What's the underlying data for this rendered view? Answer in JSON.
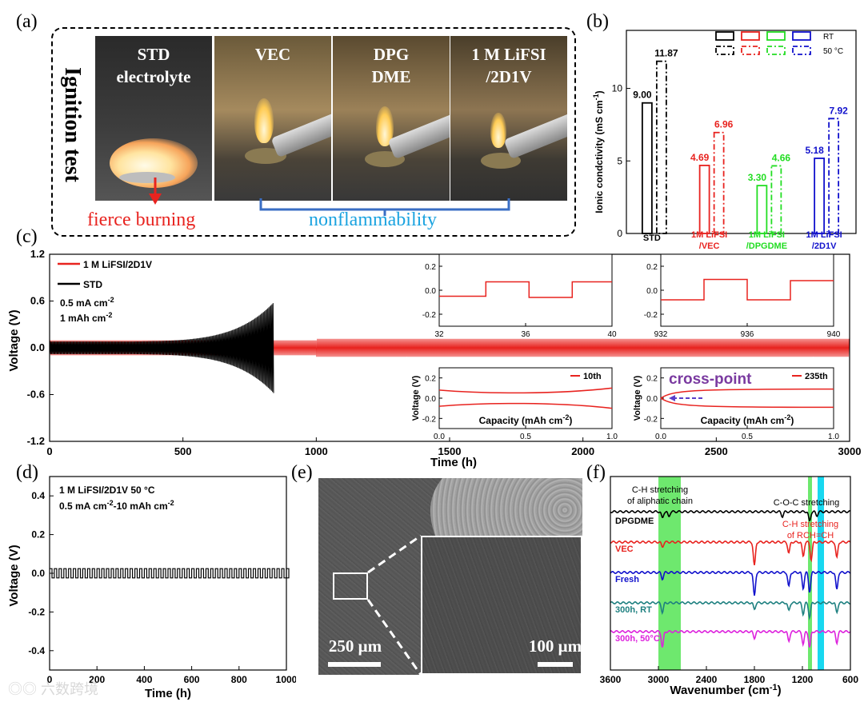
{
  "panel_labels": {
    "a": "(a)",
    "b": "(b)",
    "c": "(c)",
    "d": "(d)",
    "e": "(e)",
    "f": "(f)"
  },
  "panel_a": {
    "side_title": "Ignition test",
    "photos": [
      {
        "line1": "STD",
        "line2": "electrolyte"
      },
      {
        "line1": "VEC",
        "line2": ""
      },
      {
        "line1": "DPG",
        "line2": "DME"
      },
      {
        "line1": "1 M LiFSI",
        "line2": "/2D1V"
      }
    ],
    "fierce_label": "fierce  burning",
    "nonflam_label": "nonflammability",
    "colors": {
      "fierce": "#e8231f",
      "nonflam": "#1aa3e0"
    }
  },
  "chart_data": [
    {
      "id": "b",
      "type": "bar",
      "ylabel": "Ionic condctivity (mS cm-1)",
      "yticks": [
        "0",
        "5",
        "10"
      ],
      "ylim": [
        0,
        14
      ],
      "categories": [
        "STD",
        "1M LiFSI /VEC",
        "1M LiFSI /DPGDME",
        "1M LiFSI /2D1V"
      ],
      "category_lines": [
        [
          "STD"
        ],
        [
          "1M LiFSI",
          "/VEC"
        ],
        [
          "1M LiFSI",
          "/DPGDME"
        ],
        [
          "1M LiFSI",
          "/2D1V"
        ]
      ],
      "colors": [
        "#000000",
        "#e8231f",
        "#22dd22",
        "#1111cc"
      ],
      "series": [
        {
          "name": "RT",
          "values": [
            9.0,
            4.69,
            3.3,
            5.18
          ],
          "labels": [
            "9.00",
            "4.69",
            "3.30",
            "5.18"
          ],
          "style": "solid"
        },
        {
          "name": "50 °C",
          "values": [
            11.87,
            6.96,
            4.66,
            7.92
          ],
          "labels": [
            "11.87",
            "6.96",
            "4.66",
            "7.92"
          ],
          "style": "dashdot"
        }
      ]
    },
    {
      "id": "c",
      "type": "line",
      "xlabel": "Time (h)",
      "ylabel": "Voltage (V)",
      "xlim": [
        0,
        3000
      ],
      "ylim": [
        -1.2,
        1.2
      ],
      "xticks": [
        "0",
        "500",
        "1000",
        "1500",
        "2000",
        "2500",
        "3000"
      ],
      "yticks": [
        "1.2",
        "0.6",
        "0.0",
        "-0.6",
        "-1.2"
      ],
      "series": [
        {
          "name": "1 M LiFSI/2D1V",
          "color": "#e8231f",
          "x_range": [
            0,
            3000
          ],
          "amplitude": 0.1
        },
        {
          "name": "STD",
          "color": "#000000",
          "x_range": [
            0,
            840
          ],
          "amplitude_start": 0.08,
          "amplitude_end": 0.58
        }
      ],
      "notes": [
        "0.5 mA cm-2",
        "1 mAh cm-2"
      ],
      "insets": [
        {
          "xticks": [
            "32",
            "36",
            "40"
          ],
          "yticks": [
            "0.2",
            "0.0",
            "-0.2"
          ]
        },
        {
          "xticks": [
            "932",
            "936",
            "940"
          ],
          "yticks": [
            "0.2",
            "0.0",
            "-0.2"
          ]
        },
        {
          "legend": "10th",
          "xlabel": "Capacity (mAh cm-2)",
          "ylabel": "Voltage (V)",
          "xticks": [
            "0.0",
            "0.5",
            "1.0"
          ],
          "yticks": [
            "0.2",
            "0.0",
            "-0.2"
          ]
        },
        {
          "legend": "235th",
          "annotation": "cross-point",
          "xlabel": "Capacity (mAh cm-2)",
          "ylabel": "Voltage (V)",
          "xticks": [
            "0.0",
            "0.5",
            "1.0"
          ],
          "yticks": [
            "0.2",
            "0.0",
            "-0.2"
          ]
        }
      ]
    },
    {
      "id": "d",
      "type": "line",
      "xlabel": "Time (h)",
      "ylabel": "Voltage (V)",
      "xlim": [
        0,
        1000
      ],
      "ylim": [
        -0.5,
        0.5
      ],
      "xticks": [
        "0",
        "200",
        "400",
        "600",
        "800",
        "1000"
      ],
      "yticks": [
        "0.4",
        "0.2",
        "0.0",
        "-0.2",
        "-0.4"
      ],
      "notes": [
        "1 M LiFSI/2D1V    50 °C",
        "0.5 mA cm-2-10 mAh cm-2"
      ],
      "series": [
        {
          "name": "1 M LiFSI/2D1V 50 °C",
          "color": "#000000",
          "amplitude": 0.03
        }
      ]
    },
    {
      "id": "f",
      "type": "line",
      "xlabel": "Wavenumber (cm-1)",
      "xlim": [
        3600,
        600
      ],
      "xticks": [
        "3600",
        "3000",
        "2400",
        "1800",
        "1200",
        "600"
      ],
      "series": [
        {
          "name": "DPGDME",
          "color": "#000000"
        },
        {
          "name": "VEC",
          "color": "#e8231f"
        },
        {
          "name": "Fresh",
          "color": "#1111cc"
        },
        {
          "name": "300h, RT",
          "color": "#1e8080"
        },
        {
          "name": "300h, 50°C",
          "color": "#dd22dd"
        }
      ],
      "annotations": [
        "C-H stretching",
        "of aliphatic chain",
        "C-O-C stretching",
        "C-H stretching",
        "of RCH=CH"
      ]
    }
  ],
  "panel_e": {
    "scale_left": "250 μm",
    "scale_right": "100 μm"
  },
  "watermark": "六数跨境"
}
